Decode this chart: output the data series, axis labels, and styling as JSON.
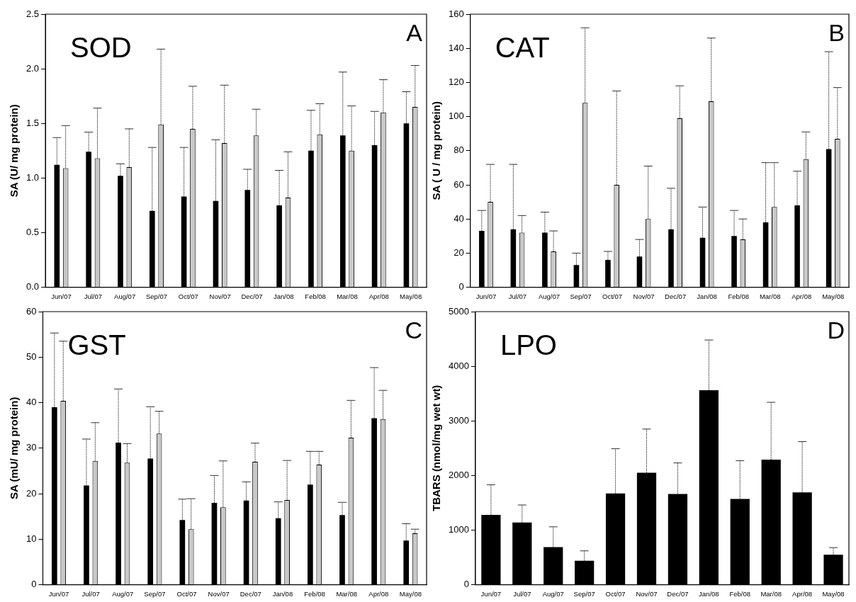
{
  "chart_data": [
    {
      "type": "bar",
      "ylabel": "SA (U/ mg protein)",
      "annotations": [
        "SOD",
        "A"
      ],
      "categories": [
        "Jun/07",
        "Jul/07",
        "Aug/07",
        "Sep/07",
        "Oct/07",
        "Nov/07",
        "Dec/07",
        "Jan/08",
        "Feb/08",
        "Mar/08",
        "Apr/08",
        "May/08"
      ],
      "series": [
        {
          "color": "#000000",
          "values": [
            1.12,
            1.24,
            1.02,
            0.7,
            0.83,
            0.79,
            0.89,
            0.75,
            1.25,
            1.39,
            1.3,
            1.5
          ],
          "errors": [
            [
              1.12,
              1.37
            ],
            [
              1.24,
              1.42
            ],
            [
              1.02,
              1.13
            ],
            [
              0.7,
              1.28
            ],
            [
              0.83,
              1.28
            ],
            [
              0.79,
              1.35
            ],
            [
              0.89,
              1.08
            ],
            [
              0.75,
              1.07
            ],
            [
              1.25,
              1.62
            ],
            [
              1.39,
              1.97
            ],
            [
              1.3,
              1.61
            ],
            [
              1.5,
              1.79
            ]
          ]
        },
        {
          "color": "#c8c8c8",
          "values": [
            1.09,
            1.18,
            1.1,
            1.49,
            1.45,
            1.32,
            1.39,
            0.82,
            1.4,
            1.25,
            1.6,
            1.65
          ],
          "errors": [
            [
              1.09,
              1.48
            ],
            [
              1.18,
              1.64
            ],
            [
              1.1,
              1.45
            ],
            [
              1.49,
              2.18
            ],
            [
              1.45,
              1.84
            ],
            [
              1.32,
              1.85
            ],
            [
              1.39,
              1.63
            ],
            [
              0.82,
              1.24
            ],
            [
              1.4,
              1.68
            ],
            [
              1.25,
              1.66
            ],
            [
              1.6,
              1.9
            ],
            [
              1.65,
              2.03
            ]
          ]
        }
      ],
      "ylim": [
        0,
        2.5
      ],
      "yticks": [
        {
          "value": 0,
          "label": "0.0"
        },
        {
          "value": 0.5,
          "label": "0.5"
        },
        {
          "value": 1,
          "label": "1.0"
        },
        {
          "value": 1.5,
          "label": "1.5"
        },
        {
          "value": 2,
          "label": "2.0"
        },
        {
          "value": 2.5,
          "label": "2.5"
        }
      ],
      "grid": false,
      "legend": false
    },
    {
      "type": "bar",
      "ylabel": "SA ( U / mg protein)",
      "annotations": [
        "CAT",
        "B"
      ],
      "categories": [
        "Jun/07",
        "Jul/07",
        "Aug/07",
        "Sep/07",
        "Oct/07",
        "Nov/07",
        "Dec/07",
        "Jan/08",
        "Feb/08",
        "Mar/08",
        "Apr/08",
        "May/08"
      ],
      "series": [
        {
          "color": "#000000",
          "values": [
            33,
            34,
            32,
            13,
            16,
            18,
            34,
            29,
            30,
            38,
            48,
            81
          ],
          "errors": [
            [
              33,
              45
            ],
            [
              34,
              72
            ],
            [
              32,
              44
            ],
            [
              13,
              20
            ],
            [
              16,
              21
            ],
            [
              18,
              28
            ],
            [
              34,
              58
            ],
            [
              29,
              47
            ],
            [
              30,
              45
            ],
            [
              38,
              73
            ],
            [
              48,
              68
            ],
            [
              81,
              138
            ]
          ]
        },
        {
          "color": "#c8c8c8",
          "values": [
            50,
            32,
            21,
            108,
            60,
            40,
            99,
            109,
            28,
            47,
            75,
            87
          ],
          "errors": [
            [
              50,
              72
            ],
            [
              32,
              42
            ],
            [
              21,
              33
            ],
            [
              108,
              152
            ],
            [
              60,
              115
            ],
            [
              40,
              71
            ],
            [
              99,
              118
            ],
            [
              109,
              146
            ],
            [
              28,
              40
            ],
            [
              47,
              73
            ],
            [
              75,
              91
            ],
            [
              87,
              117
            ]
          ]
        }
      ],
      "ylim": [
        0,
        160
      ],
      "yticks": [
        0,
        20,
        40,
        60,
        80,
        100,
        120,
        140,
        160
      ],
      "grid": false,
      "legend": false
    },
    {
      "type": "bar",
      "ylabel": "SA (mU/ mg protein)",
      "annotations": [
        "GST",
        "C"
      ],
      "categories": [
        "Jun/07",
        "Jul/07",
        "Aug/07",
        "Sep/07",
        "Oct/07",
        "Nov/07",
        "Dec/07",
        "Jan/08",
        "Feb/08",
        "Mar/08",
        "Apr/08",
        "May/08"
      ],
      "series": [
        {
          "color": "#000000",
          "values": [
            39,
            21.8,
            31.2,
            27.7,
            14.2,
            18,
            18.5,
            14.6,
            22,
            15.3,
            36.6,
            9.7
          ],
          "errors": [
            [
              39,
              55.3
            ],
            [
              21.8,
              32
            ],
            [
              31.2,
              43
            ],
            [
              27.7,
              39.1
            ],
            [
              14.2,
              18.8
            ],
            [
              18,
              24
            ],
            [
              18.5,
              22.6
            ],
            [
              14.6,
              18.2
            ],
            [
              22,
              29.3
            ],
            [
              15.3,
              18.1
            ],
            [
              36.6,
              47.7
            ],
            [
              9.7,
              13.4
            ]
          ]
        },
        {
          "color": "#c8c8c8",
          "values": [
            40.4,
            27.2,
            26.8,
            33.2,
            12.2,
            17,
            27,
            18.6,
            26.4,
            32.3,
            36.4,
            11.3
          ],
          "errors": [
            [
              40.4,
              53.5
            ],
            [
              27.2,
              35.6
            ],
            [
              26.8,
              31
            ],
            [
              33.2,
              38.1
            ],
            [
              12.2,
              18.9
            ],
            [
              17,
              27.2
            ],
            [
              27,
              31.1
            ],
            [
              18.6,
              27.3
            ],
            [
              26.4,
              29.3
            ],
            [
              32.3,
              40.5
            ],
            [
              36.4,
              42.7
            ],
            [
              11.3,
              12.2
            ]
          ]
        }
      ],
      "ylim": [
        0,
        60
      ],
      "yticks": [
        0,
        10,
        20,
        30,
        40,
        50,
        60
      ],
      "grid": false,
      "legend": false
    },
    {
      "type": "bar",
      "ylabel": "TBARS (nmol/mg wet wt)",
      "annotations": [
        "LPO",
        "D"
      ],
      "categories": [
        "Jun/07",
        "Jul/07",
        "Aug/07",
        "Sep/07",
        "Oct/07",
        "Nov/07",
        "Dec/07",
        "Jan/08",
        "Feb/08",
        "Mar/08",
        "Apr/08",
        "May/08"
      ],
      "series": [
        {
          "color": "#000000",
          "values": [
            1280,
            1140,
            690,
            440,
            1670,
            2050,
            1660,
            3560,
            1570,
            2290,
            1690,
            550
          ],
          "errors": [
            [
              1280,
              1830
            ],
            [
              1140,
              1460
            ],
            [
              690,
              1060
            ],
            [
              440,
              620
            ],
            [
              1670,
              2490
            ],
            [
              2050,
              2850
            ],
            [
              1660,
              2230
            ],
            [
              3560,
              4480
            ],
            [
              1570,
              2270
            ],
            [
              2290,
              3340
            ],
            [
              1690,
              2620
            ],
            [
              550,
              680
            ]
          ]
        }
      ],
      "ylim": [
        0,
        5000
      ],
      "yticks": [
        0,
        1000,
        2000,
        3000,
        4000,
        5000
      ],
      "grid": false,
      "legend": false
    }
  ]
}
